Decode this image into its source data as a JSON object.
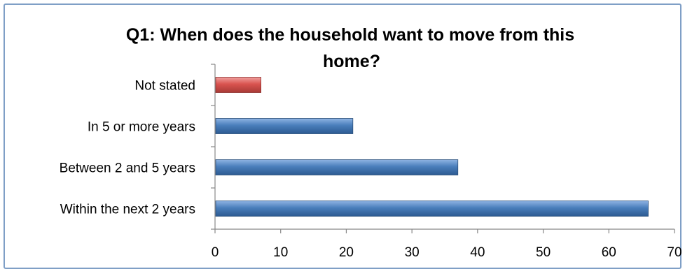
{
  "chart_data": {
    "type": "bar",
    "orientation": "horizontal",
    "title_lines": [
      "Q1: When does the household want to move from this",
      "home?"
    ],
    "categories": [
      "Not stated",
      "In 5 or more years",
      "Between 2 and 5 years",
      "Within the next 2 years"
    ],
    "values": [
      7,
      21,
      37,
      66
    ],
    "bar_colors": [
      "#d9534f",
      "#4a7ebb",
      "#4a7ebb",
      "#4a7ebb"
    ],
    "xlim": [
      0,
      70
    ],
    "xticks": [
      0,
      10,
      20,
      30,
      40,
      50,
      60,
      70
    ],
    "grid": false,
    "legend": "none"
  }
}
